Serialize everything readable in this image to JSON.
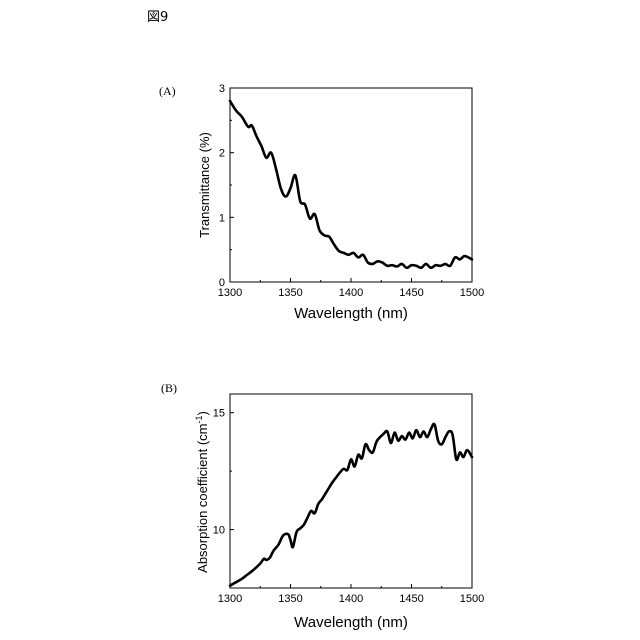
{
  "figure_label": "図9",
  "chart_data": [
    {
      "type": "line",
      "panel_label": "(A)",
      "xlabel": "Wavelength (nm)",
      "ylabel": "Transmittance (%)",
      "xlim": [
        1300,
        1500
      ],
      "ylim": [
        0,
        3
      ],
      "xticks": [
        "1300",
        "1350",
        "1400",
        "1450",
        "1500"
      ],
      "yticks": [
        "0",
        "1",
        "2",
        "3"
      ],
      "grid": false,
      "series": [
        {
          "x": [
            1300,
            1305,
            1310,
            1315,
            1318,
            1322,
            1326,
            1330,
            1334,
            1338,
            1342,
            1346,
            1350,
            1354,
            1358,
            1362,
            1366,
            1370,
            1374,
            1378,
            1382,
            1386,
            1390,
            1394,
            1398,
            1402,
            1406,
            1410,
            1414,
            1418,
            1422,
            1426,
            1430,
            1434,
            1438,
            1442,
            1446,
            1450,
            1454,
            1458,
            1462,
            1466,
            1470,
            1474,
            1478,
            1482,
            1486,
            1490,
            1494,
            1500
          ],
          "y": [
            2.8,
            2.65,
            2.55,
            2.4,
            2.42,
            2.25,
            2.1,
            1.92,
            2.0,
            1.75,
            1.45,
            1.32,
            1.45,
            1.65,
            1.25,
            1.2,
            0.98,
            1.05,
            0.8,
            0.72,
            0.7,
            0.58,
            0.48,
            0.45,
            0.42,
            0.45,
            0.38,
            0.42,
            0.3,
            0.28,
            0.32,
            0.3,
            0.25,
            0.26,
            0.24,
            0.28,
            0.22,
            0.26,
            0.25,
            0.22,
            0.28,
            0.22,
            0.26,
            0.25,
            0.28,
            0.25,
            0.38,
            0.35,
            0.4,
            0.35
          ]
        }
      ]
    },
    {
      "type": "line",
      "panel_label": "(B)",
      "xlabel": "Wavelength (nm)",
      "ylabel": "Absorption coefficient (cm",
      "ylabel_sup": "-1",
      "ylabel_end": ")",
      "xlim": [
        1300,
        1500
      ],
      "ylim": [
        7.5,
        15.8
      ],
      "xticks": [
        "1300",
        "1350",
        "1400",
        "1450",
        "1500"
      ],
      "yticks": [
        "10",
        "15"
      ],
      "ytick_values": [
        10,
        15
      ],
      "grid": false,
      "series": [
        {
          "x": [
            1300,
            1305,
            1310,
            1315,
            1320,
            1325,
            1328,
            1330,
            1333,
            1336,
            1340,
            1344,
            1348,
            1350,
            1352,
            1355,
            1358,
            1361,
            1364,
            1367,
            1370,
            1373,
            1376,
            1379,
            1382,
            1385,
            1388,
            1391,
            1394,
            1397,
            1400,
            1403,
            1406,
            1409,
            1412,
            1415,
            1418,
            1421,
            1424,
            1427,
            1430,
            1433,
            1436,
            1439,
            1442,
            1445,
            1448,
            1451,
            1454,
            1457,
            1460,
            1463,
            1466,
            1469,
            1472,
            1475,
            1478,
            1481,
            1484,
            1487,
            1490,
            1493,
            1496,
            1500
          ],
          "y": [
            7.6,
            7.75,
            7.9,
            8.1,
            8.3,
            8.55,
            8.75,
            8.7,
            8.8,
            9.1,
            9.35,
            9.75,
            9.8,
            9.55,
            9.25,
            9.9,
            10.05,
            10.2,
            10.5,
            10.8,
            10.7,
            11.1,
            11.3,
            11.55,
            11.8,
            12.05,
            12.25,
            12.45,
            12.6,
            12.55,
            13.0,
            12.7,
            13.2,
            13.05,
            13.65,
            13.4,
            13.3,
            13.75,
            13.95,
            14.1,
            14.2,
            13.7,
            14.15,
            13.8,
            14.0,
            13.85,
            14.15,
            13.9,
            14.25,
            13.95,
            14.2,
            13.95,
            14.3,
            14.5,
            13.8,
            13.65,
            13.95,
            14.2,
            14.05,
            13.0,
            13.3,
            13.1,
            13.4,
            13.1
          ]
        }
      ]
    }
  ]
}
